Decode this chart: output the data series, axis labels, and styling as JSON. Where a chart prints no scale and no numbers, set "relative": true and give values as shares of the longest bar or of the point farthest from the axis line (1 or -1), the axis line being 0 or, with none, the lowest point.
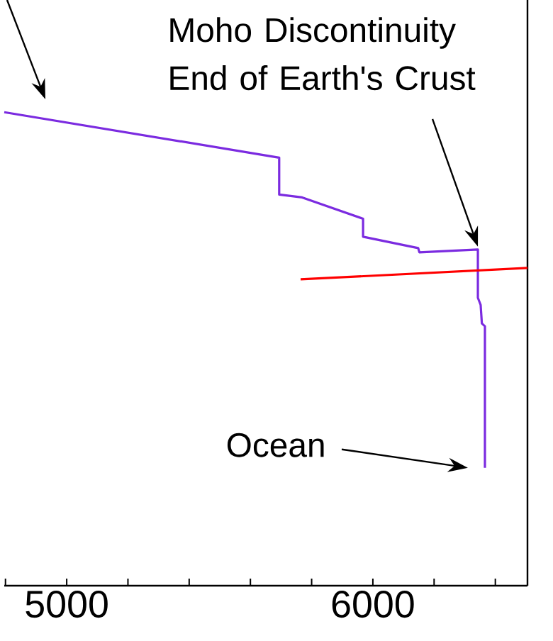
{
  "chart_data": {
    "type": "line",
    "relative": true,
    "xlim": [
      4796,
      6505
    ],
    "xticks": [
      {
        "value": 4800,
        "label": null
      },
      5000,
      {
        "value": 5200,
        "label": null
      },
      {
        "value": 5400,
        "label": null
      },
      {
        "value": 5600,
        "label": null
      },
      {
        "value": 5800,
        "label": null
      },
      6000,
      {
        "value": 6200,
        "label": null
      },
      {
        "value": 6400,
        "label": null
      }
    ],
    "series": [
      {
        "color": "#7b2be0",
        "x": [
          4796,
          5694,
          5694,
          5769,
          5968,
          5968,
          6148,
          6152,
          6343,
          6343,
          6352,
          6356,
          6366,
          6366
        ],
        "values": [
          1,
          0.904,
          0.826,
          0.82,
          0.775,
          0.737,
          0.713,
          0.704,
          0.71,
          0.608,
          0.593,
          0.554,
          0.548,
          0.249
        ]
      },
      {
        "color": "#ff0000",
        "x": [
          5764,
          6505
        ],
        "values": [
          0.647,
          0.671
        ]
      }
    ],
    "annotations": [
      {
        "text": "Moho Discontinuity End of Earth's Crust",
        "x": 6343,
        "y": 0.716
      },
      "Ocean"
    ]
  }
}
